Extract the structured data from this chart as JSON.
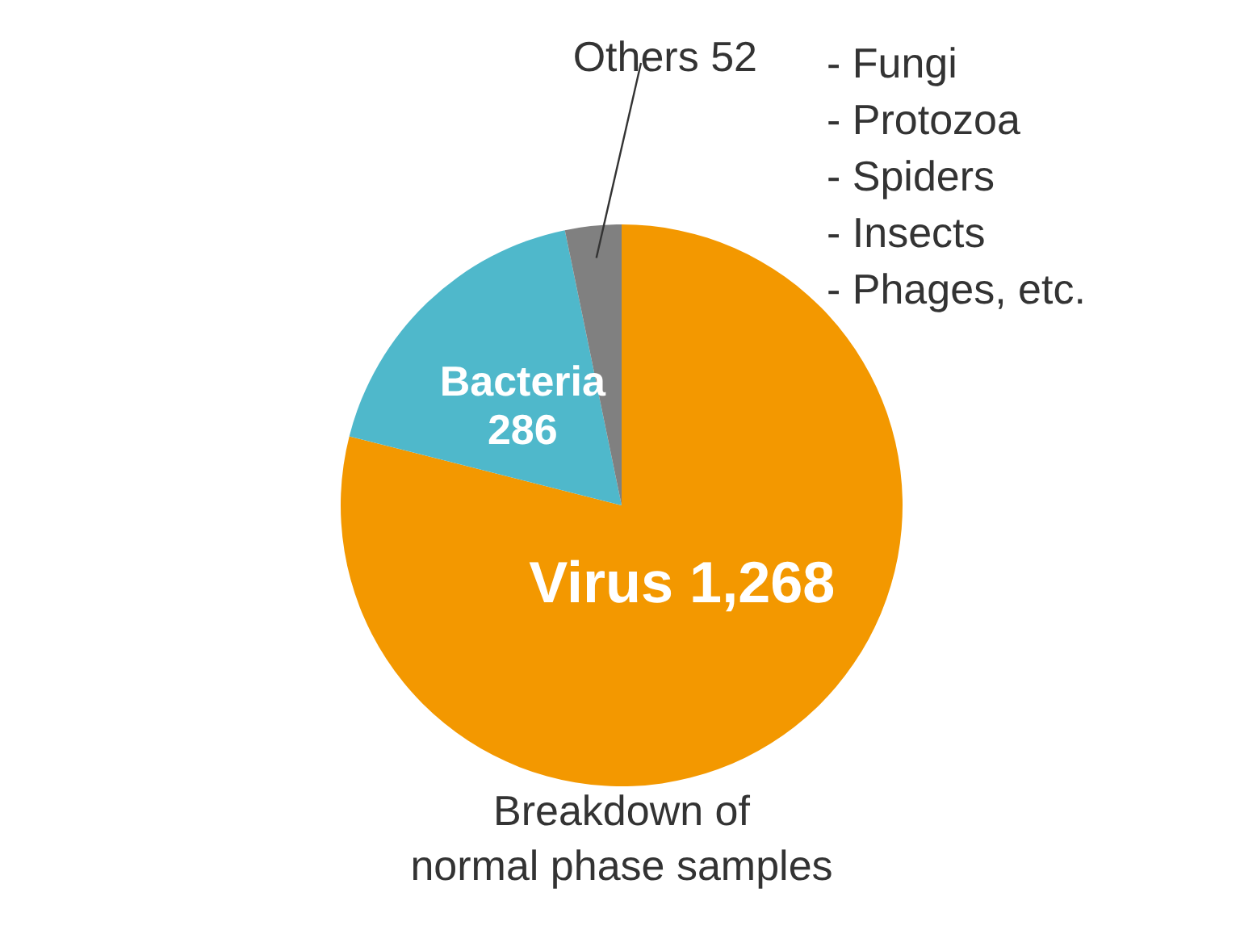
{
  "chart_data": {
    "type": "pie",
    "categories": [
      "Virus",
      "Bacteria",
      "Others"
    ],
    "values": [
      1268,
      286,
      52
    ],
    "value_labels": [
      "1,268",
      "286",
      "52"
    ],
    "colors": [
      "#f39800",
      "#4fb8cb",
      "#808080"
    ],
    "annotations": [
      "- Fungi",
      "- Protozoa",
      "- Spiders",
      "- Insects",
      "- Phages, etc.",
      "Breakdown of\nnormal phase samples"
    ]
  }
}
